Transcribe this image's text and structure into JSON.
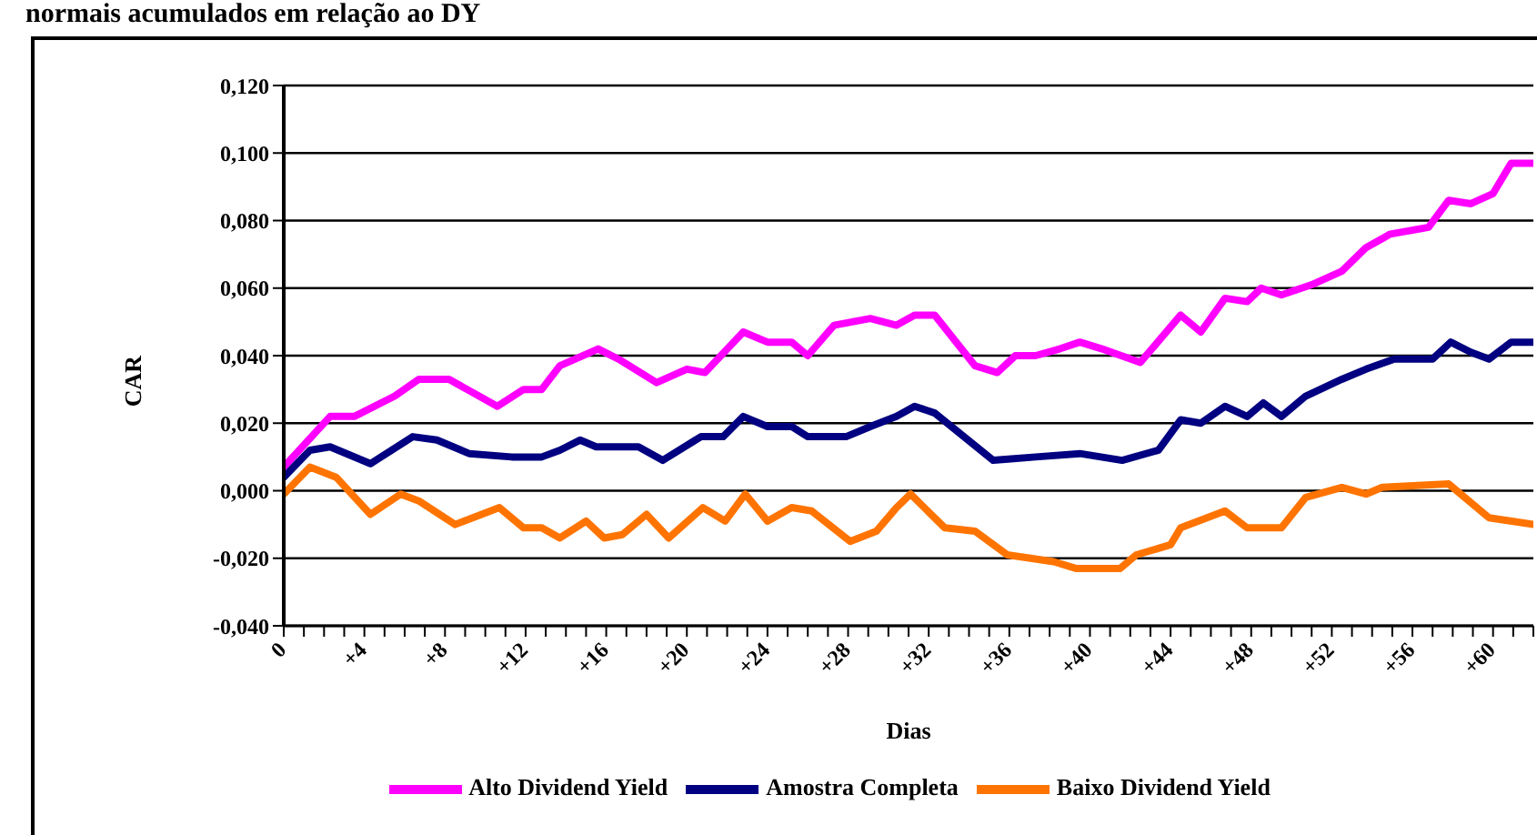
{
  "chart_data": {
    "type": "line",
    "title": "normais acumulados em relação ao DY",
    "xlabel": "Dias",
    "ylabel": "CAR",
    "xlim": [
      0,
      62
    ],
    "xticks": [
      {
        "value": 0,
        "label": "0"
      },
      {
        "value": 1,
        "label": null
      },
      {
        "value": 2,
        "label": null
      },
      {
        "value": 3,
        "label": null
      },
      {
        "value": 4,
        "label": "+4"
      },
      {
        "value": 5,
        "label": null
      },
      {
        "value": 6,
        "label": null
      },
      {
        "value": 7,
        "label": null
      },
      {
        "value": 8,
        "label": "+8"
      },
      {
        "value": 9,
        "label": null
      },
      {
        "value": 10,
        "label": null
      },
      {
        "value": 11,
        "label": null
      },
      {
        "value": 12,
        "label": "+12"
      },
      {
        "value": 13,
        "label": null
      },
      {
        "value": 14,
        "label": null
      },
      {
        "value": 15,
        "label": null
      },
      {
        "value": 16,
        "label": "+16"
      },
      {
        "value": 17,
        "label": null
      },
      {
        "value": 18,
        "label": null
      },
      {
        "value": 19,
        "label": null
      },
      {
        "value": 20,
        "label": "+20"
      },
      {
        "value": 21,
        "label": null
      },
      {
        "value": 22,
        "label": null
      },
      {
        "value": 23,
        "label": null
      },
      {
        "value": 24,
        "label": "+24"
      },
      {
        "value": 25,
        "label": null
      },
      {
        "value": 26,
        "label": null
      },
      {
        "value": 27,
        "label": null
      },
      {
        "value": 28,
        "label": "+28"
      },
      {
        "value": 29,
        "label": null
      },
      {
        "value": 30,
        "label": null
      },
      {
        "value": 31,
        "label": null
      },
      {
        "value": 32,
        "label": "+32"
      },
      {
        "value": 33,
        "label": null
      },
      {
        "value": 34,
        "label": null
      },
      {
        "value": 35,
        "label": null
      },
      {
        "value": 36,
        "label": "+36"
      },
      {
        "value": 37,
        "label": null
      },
      {
        "value": 38,
        "label": null
      },
      {
        "value": 39,
        "label": null
      },
      {
        "value": 40,
        "label": "+40"
      },
      {
        "value": 41,
        "label": null
      },
      {
        "value": 42,
        "label": null
      },
      {
        "value": 43,
        "label": null
      },
      {
        "value": 44,
        "label": "+44"
      },
      {
        "value": 45,
        "label": null
      },
      {
        "value": 46,
        "label": null
      },
      {
        "value": 47,
        "label": null
      },
      {
        "value": 48,
        "label": "+48"
      },
      {
        "value": 49,
        "label": null
      },
      {
        "value": 50,
        "label": null
      },
      {
        "value": 51,
        "label": null
      },
      {
        "value": 52,
        "label": "+52"
      },
      {
        "value": 53,
        "label": null
      },
      {
        "value": 54,
        "label": null
      },
      {
        "value": 55,
        "label": null
      },
      {
        "value": 56,
        "label": "+56"
      },
      {
        "value": 57,
        "label": null
      },
      {
        "value": 58,
        "label": null
      },
      {
        "value": 59,
        "label": null
      },
      {
        "value": 60,
        "label": "+60"
      },
      {
        "value": 61,
        "label": null
      },
      {
        "value": 62,
        "label": null
      }
    ],
    "ylim": [
      -0.04,
      0.12
    ],
    "yticks": [
      {
        "value": -0.04,
        "label": "-0,040"
      },
      {
        "value": -0.02,
        "label": "-0,020"
      },
      {
        "value": 0,
        "label": "0,000"
      },
      {
        "value": 0.02,
        "label": "0,020"
      },
      {
        "value": 0.04,
        "label": "0,040"
      },
      {
        "value": 0.06,
        "label": "0,060"
      },
      {
        "value": 0.08,
        "label": "0,080"
      },
      {
        "value": 0.1,
        "label": "0,100"
      },
      {
        "value": 0.12,
        "label": "0,120"
      }
    ],
    "grid": "y",
    "legend": "bottom",
    "marker": "none",
    "line_style": "solid",
    "series": [
      {
        "name": "Alto Dividend Yield",
        "color": "#ff00ff",
        "x": [
          0,
          2.3,
          3.5,
          5.5,
          6.7,
          8.2,
          10.6,
          11.9,
          12.8,
          13.7,
          15.6,
          16.6,
          18.5,
          20,
          20.9,
          22.8,
          24,
          25.2,
          26,
          27.3,
          29.1,
          30.4,
          31.3,
          32.3,
          34.3,
          35.4,
          36.3,
          37.3,
          38.5,
          39.5,
          40.6,
          42.5,
          44.5,
          45.5,
          46.7,
          47.8,
          48.5,
          49.5,
          51,
          52.5,
          53.7,
          54.9,
          56.8,
          57.8,
          58.9,
          60,
          60.9,
          62
        ],
        "values": [
          0.007,
          0.022,
          0.022,
          0.028,
          0.033,
          0.033,
          0.025,
          0.03,
          0.03,
          0.037,
          0.042,
          0.039,
          0.032,
          0.036,
          0.035,
          0.047,
          0.044,
          0.044,
          0.04,
          0.049,
          0.051,
          0.049,
          0.052,
          0.052,
          0.037,
          0.035,
          0.04,
          0.04,
          0.042,
          0.044,
          0.042,
          0.038,
          0.052,
          0.047,
          0.057,
          0.056,
          0.06,
          0.058,
          0.061,
          0.065,
          0.072,
          0.076,
          0.078,
          0.086,
          0.085,
          0.088,
          0.097,
          0.097
        ]
      },
      {
        "name": "Amostra Completa",
        "color": "#000080",
        "x": [
          0,
          1.3,
          2.3,
          4.3,
          6.4,
          7.6,
          9.2,
          11.3,
          12.8,
          13.7,
          14.7,
          15.5,
          17.6,
          18.8,
          20.7,
          21.8,
          22.8,
          24,
          25.2,
          26,
          27.9,
          29.1,
          30.4,
          31.3,
          32.3,
          35.2,
          37.3,
          39.5,
          41.6,
          43.4,
          44.5,
          45.5,
          46.7,
          47.8,
          48.6,
          49.5,
          50.7,
          52.5,
          53.7,
          55.1,
          57,
          57.9,
          58.9,
          59.8,
          60.9,
          62
        ],
        "values": [
          0.004,
          0.012,
          0.013,
          0.008,
          0.016,
          0.015,
          0.011,
          0.01,
          0.01,
          0.012,
          0.015,
          0.013,
          0.013,
          0.009,
          0.016,
          0.016,
          0.022,
          0.019,
          0.019,
          0.016,
          0.016,
          0.019,
          0.022,
          0.025,
          0.023,
          0.009,
          0.01,
          0.011,
          0.009,
          0.012,
          0.021,
          0.02,
          0.025,
          0.022,
          0.026,
          0.022,
          0.028,
          0.033,
          0.036,
          0.039,
          0.039,
          0.044,
          0.041,
          0.039,
          0.044,
          0.044
        ]
      },
      {
        "name": "Baixo Dividend Yield",
        "color": "#ff7400",
        "x": [
          0,
          1.3,
          2.6,
          4.3,
          5.8,
          6.7,
          8.5,
          10.7,
          11.9,
          12.8,
          13.7,
          15,
          15.9,
          16.8,
          18,
          19.1,
          20.8,
          21.9,
          22.9,
          24,
          25.2,
          26.2,
          28.1,
          29.4,
          30.4,
          31.1,
          32.8,
          34.3,
          35.9,
          38.2,
          39.3,
          41.5,
          42.3,
          44,
          44.5,
          46.7,
          47.8,
          49.5,
          50.7,
          52.5,
          53.7,
          54.5,
          57.8,
          59.8,
          62
        ],
        "values": [
          -0.001,
          0.007,
          0.004,
          -0.007,
          -0.001,
          -0.003,
          -0.01,
          -0.005,
          -0.011,
          -0.011,
          -0.014,
          -0.009,
          -0.014,
          -0.013,
          -0.007,
          -0.014,
          -0.005,
          -0.009,
          -0.001,
          -0.009,
          -0.005,
          -0.006,
          -0.015,
          -0.012,
          -0.005,
          -0.001,
          -0.011,
          -0.012,
          -0.019,
          -0.021,
          -0.023,
          -0.023,
          -0.019,
          -0.016,
          -0.011,
          -0.006,
          -0.011,
          -0.011,
          -0.002,
          0.001,
          -0.001,
          0.001,
          0.002,
          -0.008,
          -0.01
        ]
      }
    ]
  }
}
